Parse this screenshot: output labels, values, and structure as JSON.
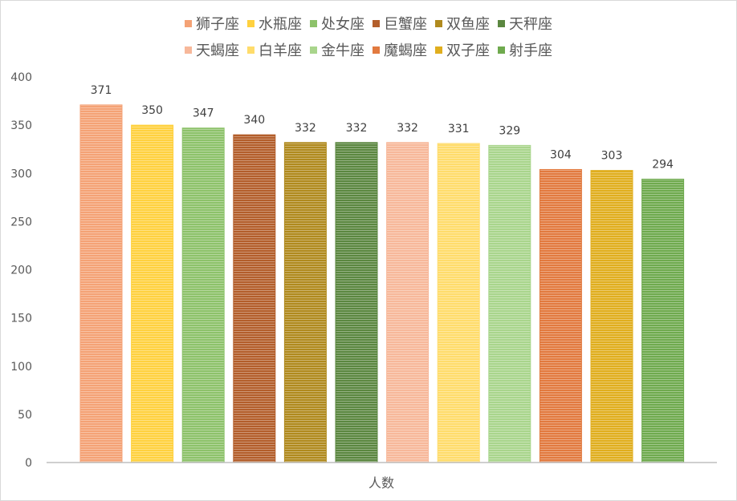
{
  "chart_data": {
    "type": "bar",
    "title": "",
    "xlabel": "",
    "ylabel": "",
    "categories": [
      "人数"
    ],
    "ylim": [
      0,
      400
    ],
    "yticks": [
      0,
      50,
      100,
      150,
      200,
      250,
      300,
      350,
      400
    ],
    "grid": false,
    "legend_position": "top",
    "series": [
      {
        "name": "狮子座",
        "values": [
          371
        ],
        "color": "#F4A275"
      },
      {
        "name": "水瓶座",
        "values": [
          350
        ],
        "color": "#FFD13F"
      },
      {
        "name": "处女座",
        "values": [
          347
        ],
        "color": "#8DC26A"
      },
      {
        "name": "巨蟹座",
        "values": [
          340
        ],
        "color": "#B35E2B"
      },
      {
        "name": "双鱼座",
        "values": [
          332
        ],
        "color": "#B08A1E"
      },
      {
        "name": "天秤座",
        "values": [
          332
        ],
        "color": "#5B8740"
      },
      {
        "name": "天蝎座",
        "values": [
          332
        ],
        "color": "#F7B89A"
      },
      {
        "name": "白羊座",
        "values": [
          331
        ],
        "color": "#FFDC6B"
      },
      {
        "name": "金牛座",
        "values": [
          329
        ],
        "color": "#A9D58C"
      },
      {
        "name": "魔蝎座",
        "values": [
          304
        ],
        "color": "#E27A3F"
      },
      {
        "name": "双子座",
        "values": [
          303
        ],
        "color": "#E0AE1E"
      },
      {
        "name": "射手座",
        "values": [
          294
        ],
        "color": "#6FAA4E"
      }
    ]
  }
}
